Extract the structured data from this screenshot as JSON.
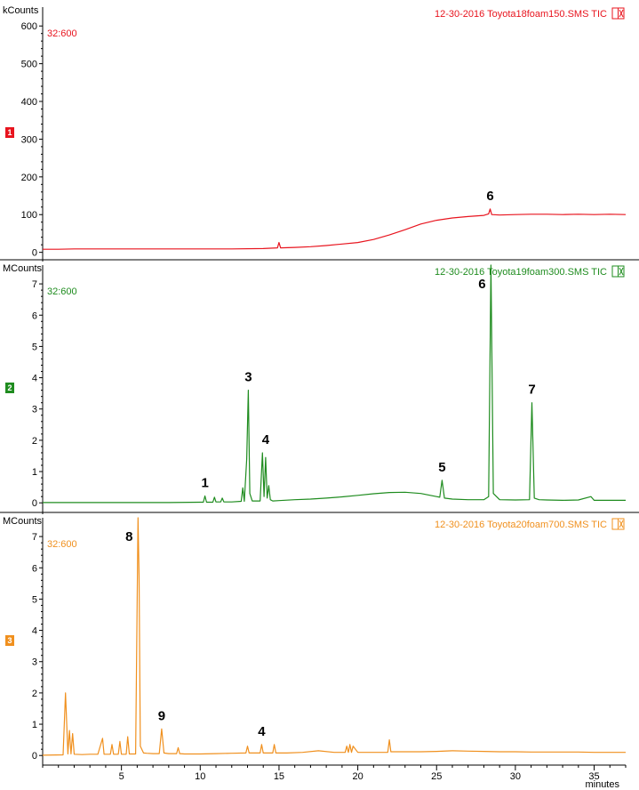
{
  "x_unit_label": "minutes",
  "chart_data": [
    {
      "type": "line",
      "panel_number": "1",
      "unit_label": "kCounts",
      "scan_range": "32:600",
      "run_label": "12-30-2016  Toyota18foam150.SMS TIC",
      "color": "#e8141e",
      "xlim": [
        0,
        37
      ],
      "ylim": [
        -15,
        650
      ],
      "yticks": [
        0,
        100,
        200,
        300,
        400,
        500,
        600
      ],
      "xticks": [
        5,
        10,
        15,
        20,
        25,
        30,
        35
      ],
      "series": [
        {
          "x": [
            0.0,
            1.0,
            2.0,
            3.0,
            4.0,
            5.0,
            6.0,
            8.0,
            10.0,
            12.0,
            14.0,
            14.9,
            15.0,
            15.1,
            16.0,
            17.0,
            18.0,
            19.0,
            20.0,
            21.0,
            22.0,
            23.0,
            24.0,
            25.0,
            26.0,
            27.0,
            28.0,
            28.3,
            28.4,
            28.5,
            29.0,
            30.0,
            31.0,
            32.0,
            33.0,
            34.0,
            35.0,
            36.0,
            37.0
          ],
          "y": [
            8,
            8,
            9,
            9,
            9,
            9,
            9,
            9,
            9,
            9,
            10,
            12,
            26,
            12,
            13,
            15,
            18,
            22,
            26,
            34,
            46,
            60,
            75,
            85,
            91,
            95,
            98,
            102,
            115,
            100,
            99,
            100,
            101,
            101,
            100,
            101,
            100,
            101,
            100
          ]
        }
      ],
      "peaks": [
        {
          "label": "6",
          "x": 28.4,
          "y": 115
        }
      ]
    },
    {
      "type": "line",
      "panel_number": "2",
      "unit_label": "MCounts",
      "scan_range": "32:600",
      "run_label": "12-30-2016  Toyota19foam300.SMS TIC",
      "color": "#1f8c1f",
      "xlim": [
        0,
        37
      ],
      "ylim": [
        -0.25,
        7.6
      ],
      "yticks": [
        0,
        1,
        2,
        3,
        4,
        5,
        6,
        7
      ],
      "xticks": [
        5,
        10,
        15,
        20,
        25,
        30,
        35
      ],
      "series": [
        {
          "x": [
            0.0,
            2.0,
            4.0,
            6.0,
            8.0,
            10.0,
            10.2,
            10.3,
            10.4,
            10.8,
            10.9,
            11.0,
            11.3,
            11.4,
            11.5,
            12.0,
            12.6,
            12.7,
            12.8,
            12.95,
            13.05,
            13.15,
            13.3,
            13.8,
            13.95,
            14.05,
            14.15,
            14.25,
            14.35,
            14.45,
            14.6,
            15.0,
            16.0,
            17.0,
            18.0,
            19.0,
            20.0,
            21.0,
            22.0,
            23.0,
            24.0,
            25.0,
            25.2,
            25.35,
            25.5,
            26.0,
            27.0,
            28.0,
            28.3,
            28.45,
            28.6,
            29.0,
            30.0,
            30.9,
            31.05,
            31.2,
            31.5,
            32.0,
            33.0,
            34.0,
            34.8,
            35.0,
            36.0,
            37.0
          ],
          "y": [
            0.01,
            0.01,
            0.01,
            0.01,
            0.01,
            0.02,
            0.02,
            0.22,
            0.02,
            0.02,
            0.18,
            0.03,
            0.03,
            0.15,
            0.03,
            0.03,
            0.05,
            0.48,
            0.05,
            1.4,
            3.6,
            0.3,
            0.06,
            0.06,
            1.6,
            0.2,
            1.45,
            0.15,
            0.55,
            0.1,
            0.06,
            0.07,
            0.1,
            0.12,
            0.15,
            0.19,
            0.24,
            0.29,
            0.33,
            0.34,
            0.3,
            0.2,
            0.18,
            0.72,
            0.15,
            0.12,
            0.1,
            0.1,
            0.2,
            7.6,
            0.3,
            0.1,
            0.09,
            0.1,
            3.2,
            0.15,
            0.1,
            0.09,
            0.08,
            0.09,
            0.2,
            0.08,
            0.08,
            0.08
          ]
        }
      ],
      "peaks": [
        {
          "label": "1",
          "x": 10.3,
          "y": 0.22
        },
        {
          "label": "3",
          "x": 13.05,
          "y": 3.6
        },
        {
          "label": "4",
          "x": 14.15,
          "y": 1.6
        },
        {
          "label": "5",
          "x": 25.35,
          "y": 0.72
        },
        {
          "label": "6",
          "x": 28.45,
          "y": 7.6
        },
        {
          "label": "7",
          "x": 31.05,
          "y": 3.2
        }
      ]
    },
    {
      "type": "line",
      "panel_number": "3",
      "unit_label": "MCounts",
      "scan_range": "32:600",
      "run_label": "12-30-2016  Toyota20foam700.SMS TIC",
      "color": "#f0901e",
      "xlim": [
        0,
        37
      ],
      "ylim": [
        -0.25,
        7.6
      ],
      "yticks": [
        0,
        1,
        2,
        3,
        4,
        5,
        6,
        7
      ],
      "xticks": [
        5,
        10,
        15,
        20,
        25,
        30,
        35
      ],
      "series": [
        {
          "x": [
            0.0,
            1.3,
            1.45,
            1.6,
            1.7,
            1.8,
            1.9,
            2.0,
            2.5,
            3.0,
            3.5,
            3.8,
            3.9,
            4.3,
            4.4,
            4.5,
            4.8,
            4.9,
            5.0,
            5.3,
            5.4,
            5.5,
            5.9,
            6.05,
            6.12,
            6.2,
            6.4,
            6.6,
            7.0,
            7.4,
            7.55,
            7.7,
            8.0,
            8.5,
            8.6,
            8.7,
            9.0,
            10.0,
            11.0,
            12.0,
            12.9,
            13.0,
            13.1,
            13.8,
            13.9,
            14.0,
            14.6,
            14.7,
            14.8,
            15.5,
            16.5,
            17.5,
            18.5,
            19.2,
            19.3,
            19.4,
            19.5,
            19.6,
            19.7,
            20.0,
            21.0,
            21.9,
            22.0,
            22.1,
            22.5,
            23.0,
            24.0,
            25.0,
            26.0,
            27.0,
            28.0,
            29.0,
            30.0,
            31.0,
            32.0,
            33.0,
            34.0,
            35.0,
            36.0,
            37.0
          ],
          "y": [
            0.01,
            0.02,
            2.0,
            0.05,
            0.8,
            0.05,
            0.7,
            0.04,
            0.03,
            0.04,
            0.04,
            0.55,
            0.04,
            0.04,
            0.35,
            0.04,
            0.04,
            0.45,
            0.04,
            0.04,
            0.6,
            0.05,
            0.05,
            7.6,
            5.7,
            0.3,
            0.08,
            0.07,
            0.06,
            0.06,
            0.85,
            0.08,
            0.06,
            0.06,
            0.25,
            0.06,
            0.05,
            0.05,
            0.06,
            0.07,
            0.08,
            0.3,
            0.08,
            0.08,
            0.35,
            0.08,
            0.08,
            0.35,
            0.08,
            0.08,
            0.1,
            0.15,
            0.1,
            0.1,
            0.3,
            0.1,
            0.35,
            0.1,
            0.3,
            0.1,
            0.1,
            0.1,
            0.5,
            0.12,
            0.12,
            0.12,
            0.12,
            0.13,
            0.15,
            0.14,
            0.13,
            0.12,
            0.12,
            0.11,
            0.11,
            0.11,
            0.11,
            0.1,
            0.1,
            0.1
          ]
        }
      ],
      "peaks": [
        {
          "label": "8",
          "x": 6.05,
          "y": 7.6
        },
        {
          "label": "9",
          "x": 7.55,
          "y": 0.85
        },
        {
          "label": "4",
          "x": 13.9,
          "y": 0.35
        }
      ]
    }
  ]
}
